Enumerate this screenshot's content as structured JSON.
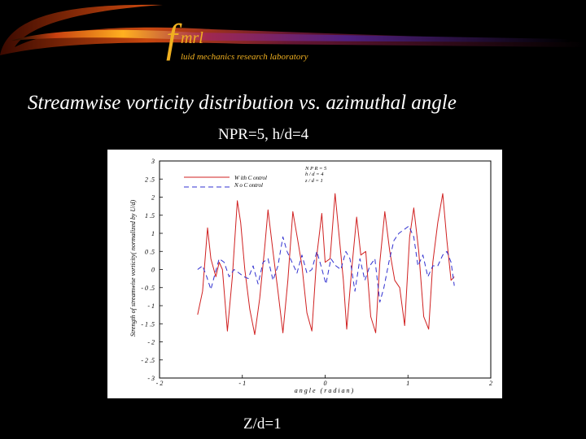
{
  "header": {
    "logo_f": "f",
    "logo_mrl": "mrl",
    "logo_subtitle": "luid mechanics research laboratory"
  },
  "slide": {
    "title": "Streamwise vorticity distribution vs. azimuthal angle",
    "subtitle": "NPR=5, h/d=4",
    "caption": "Z/d=1"
  },
  "colors": {
    "background": "#000000",
    "accent": "#f0b020",
    "with_control": "#d02020",
    "no_control": "#3030d0"
  },
  "chart_data": {
    "type": "line",
    "title": "",
    "xlabel": "a n g l e   ( r a d i a n )",
    "ylabel": "Strength of streamwise vorticity( normalized by U/d)",
    "xlim": [
      -2,
      2
    ],
    "ylim": [
      -3,
      3
    ],
    "xticks": [
      -2,
      -1,
      0,
      1,
      2
    ],
    "xtick_labels": [
      "- 2",
      "- 1",
      "0",
      "1",
      "2"
    ],
    "yticks": [
      3,
      2.5,
      2,
      1.5,
      1,
      0.5,
      0,
      -0.5,
      -1,
      -1.5,
      -2,
      -2.5,
      -3
    ],
    "ytick_labels": [
      "3",
      "2 .5",
      "2",
      "1 .5",
      "1",
      "0 .5",
      "0",
      "- 0 .5",
      "- 1",
      "- 1 .5",
      "- 2",
      "- 2 .5",
      "- 3"
    ],
    "grid": false,
    "legend_position": "top-left",
    "annotations": [
      "N P R = 5",
      "h / d = 4",
      "z / d = 1"
    ],
    "series": [
      {
        "name": "W ith C ontrol",
        "style": "solid",
        "x": [
          -1.54,
          -1.48,
          -1.42,
          -1.38,
          -1.32,
          -1.28,
          -1.24,
          -1.18,
          -1.12,
          -1.06,
          -1.02,
          -0.97,
          -0.91,
          -0.85,
          -0.79,
          -0.73,
          -0.69,
          -0.63,
          -0.57,
          -0.51,
          -0.45,
          -0.39,
          -0.33,
          -0.28,
          -0.22,
          -0.16,
          -0.1,
          -0.04,
          0.0,
          0.06,
          0.12,
          0.17,
          0.22,
          0.26,
          0.32,
          0.38,
          0.43,
          0.49,
          0.55,
          0.61,
          0.66,
          0.72,
          0.78,
          0.84,
          0.9,
          0.96,
          1.02,
          1.07,
          1.13,
          1.19,
          1.25,
          1.3,
          1.36,
          1.42,
          1.47,
          1.52,
          1.56
        ],
        "y": [
          -1.25,
          -0.6,
          1.15,
          0.3,
          -0.2,
          0.2,
          0.0,
          -1.7,
          -0.2,
          1.9,
          1.3,
          0.0,
          -1.1,
          -1.8,
          -0.8,
          0.6,
          1.65,
          0.5,
          -0.6,
          -1.75,
          -0.3,
          1.6,
          0.8,
          0.1,
          -1.2,
          -1.7,
          0.4,
          1.55,
          0.2,
          0.3,
          2.1,
          0.9,
          -0.3,
          -1.65,
          0.0,
          1.45,
          0.4,
          0.5,
          -1.3,
          -1.75,
          0.2,
          1.6,
          0.5,
          -0.3,
          -0.5,
          -1.55,
          0.9,
          1.7,
          0.5,
          -1.3,
          -1.65,
          0.2,
          1.3,
          2.1,
          0.8,
          -0.3,
          -0.2
        ]
      },
      {
        "name": "N o C ontrol",
        "style": "dashed",
        "x": [
          -1.54,
          -1.48,
          -1.43,
          -1.38,
          -1.34,
          -1.28,
          -1.22,
          -1.16,
          -1.1,
          -1.04,
          -0.98,
          -0.93,
          -0.87,
          -0.81,
          -0.75,
          -0.69,
          -0.63,
          -0.57,
          -0.51,
          -0.46,
          -0.4,
          -0.34,
          -0.28,
          -0.22,
          -0.16,
          -0.1,
          -0.05,
          0.01,
          0.07,
          0.13,
          0.19,
          0.25,
          0.3,
          0.36,
          0.42,
          0.48,
          0.54,
          0.6,
          0.66,
          0.71,
          0.77,
          0.83,
          0.89,
          0.95,
          1.01,
          1.07,
          1.12,
          1.18,
          1.24,
          1.3,
          1.36,
          1.42,
          1.47,
          1.52,
          1.56
        ],
        "y": [
          0.0,
          0.1,
          -0.2,
          -0.55,
          -0.2,
          0.3,
          0.2,
          -0.2,
          0.0,
          -0.1,
          -0.2,
          -0.25,
          0.1,
          -0.4,
          0.2,
          0.3,
          -0.3,
          0.1,
          0.9,
          0.5,
          0.2,
          -0.1,
          0.4,
          -0.1,
          0.0,
          0.5,
          0.1,
          -0.4,
          0.3,
          0.1,
          0.0,
          0.5,
          0.3,
          -0.6,
          0.3,
          -0.3,
          0.1,
          0.3,
          -0.9,
          -0.5,
          0.2,
          0.8,
          1.0,
          1.1,
          1.2,
          0.9,
          0.1,
          0.4,
          -0.2,
          0.1,
          0.1,
          0.4,
          0.5,
          0.2,
          -0.45
        ]
      }
    ]
  }
}
